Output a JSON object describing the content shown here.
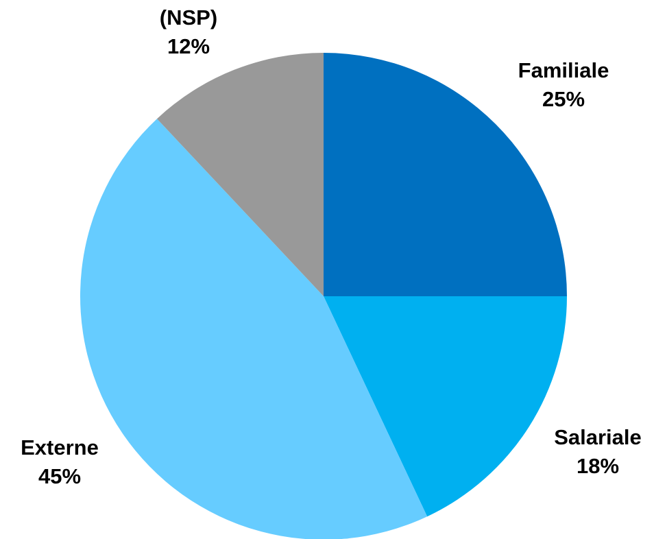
{
  "chart_data": {
    "type": "pie",
    "categories": [
      "Familiale",
      "Salariale",
      "Externe",
      "(NSP)"
    ],
    "values": [
      25,
      18,
      45,
      12
    ],
    "value_labels": [
      "25%",
      "18%",
      "45%",
      "12%"
    ],
    "colors": [
      "#0070c0",
      "#00b0f0",
      "#66ccff",
      "#999999"
    ]
  }
}
